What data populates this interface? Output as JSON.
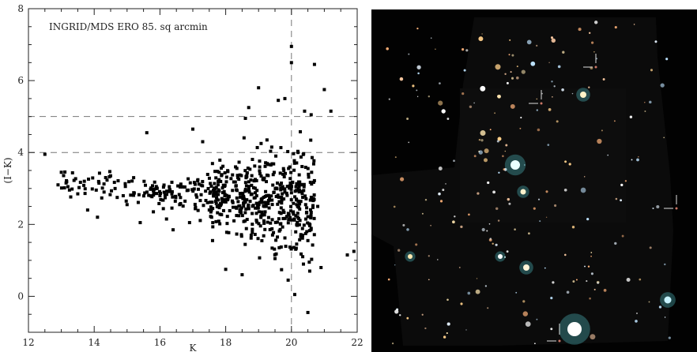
{
  "chart_data": {
    "type": "scatter",
    "title": "INGRID/MDS ERO 85. sq arcmin",
    "xlabel": "K",
    "ylabel": "(I−K)",
    "xlim": [
      12,
      22
    ],
    "ylim": [
      -1,
      8
    ],
    "xticks": [
      "12",
      "14",
      "16",
      "18",
      "20",
      "22"
    ],
    "yticks": [
      "0",
      "2",
      "4",
      "6",
      "8"
    ],
    "reference_lines": {
      "horizontal_y": [
        4,
        5
      ],
      "vertical_x": [
        20
      ],
      "style": "dashed"
    },
    "series": [
      {
        "points_sample": [
          [
            12.5,
            3.95
          ],
          [
            12.9,
            3.1
          ],
          [
            13.0,
            3.45
          ],
          [
            13.2,
            3.05
          ],
          [
            13.5,
            2.85
          ],
          [
            13.7,
            3.2
          ],
          [
            13.8,
            2.4
          ],
          [
            14.1,
            2.2
          ],
          [
            14.3,
            2.9
          ],
          [
            14.5,
            3.35
          ],
          [
            14.7,
            2.75
          ],
          [
            15.0,
            2.55
          ],
          [
            15.2,
            3.3
          ],
          [
            15.4,
            2.05
          ],
          [
            15.6,
            4.55
          ],
          [
            15.8,
            2.35
          ],
          [
            16.0,
            2.8
          ],
          [
            16.2,
            2.15
          ],
          [
            16.4,
            1.85
          ],
          [
            16.6,
            2.55
          ],
          [
            16.9,
            2.05
          ],
          [
            17.0,
            4.65
          ],
          [
            17.3,
            4.3
          ],
          [
            17.5,
            2.4
          ],
          [
            17.6,
            1.55
          ],
          [
            17.8,
            3.45
          ],
          [
            18.0,
            0.75
          ],
          [
            18.2,
            2.65
          ],
          [
            18.3,
            3.6
          ],
          [
            18.5,
            0.6
          ],
          [
            18.6,
            4.95
          ],
          [
            18.7,
            5.25
          ],
          [
            18.9,
            3.25
          ],
          [
            19.0,
            5.8
          ],
          [
            19.2,
            2.35
          ],
          [
            19.4,
            4.15
          ],
          [
            19.5,
            1.05
          ],
          [
            19.6,
            5.45
          ],
          [
            19.8,
            5.5
          ],
          [
            19.9,
            0.45
          ],
          [
            20.0,
            6.95
          ],
          [
            20.0,
            6.5
          ],
          [
            20.1,
            0.05
          ],
          [
            20.2,
            4.0
          ],
          [
            20.3,
            3.1
          ],
          [
            20.4,
            5.15
          ],
          [
            20.5,
            1.55
          ],
          [
            20.6,
            5.05
          ],
          [
            20.7,
            6.45
          ],
          [
            20.8,
            2.5
          ],
          [
            20.9,
            0.8
          ],
          [
            21.0,
            5.75
          ],
          [
            21.2,
            5.15
          ],
          [
            21.7,
            1.15
          ],
          [
            21.9,
            1.25
          ],
          [
            20.5,
            -0.45
          ]
        ]
      }
    ]
  },
  "image": {
    "description_type": "false-colour deep field image",
    "marker_count": 5
  }
}
